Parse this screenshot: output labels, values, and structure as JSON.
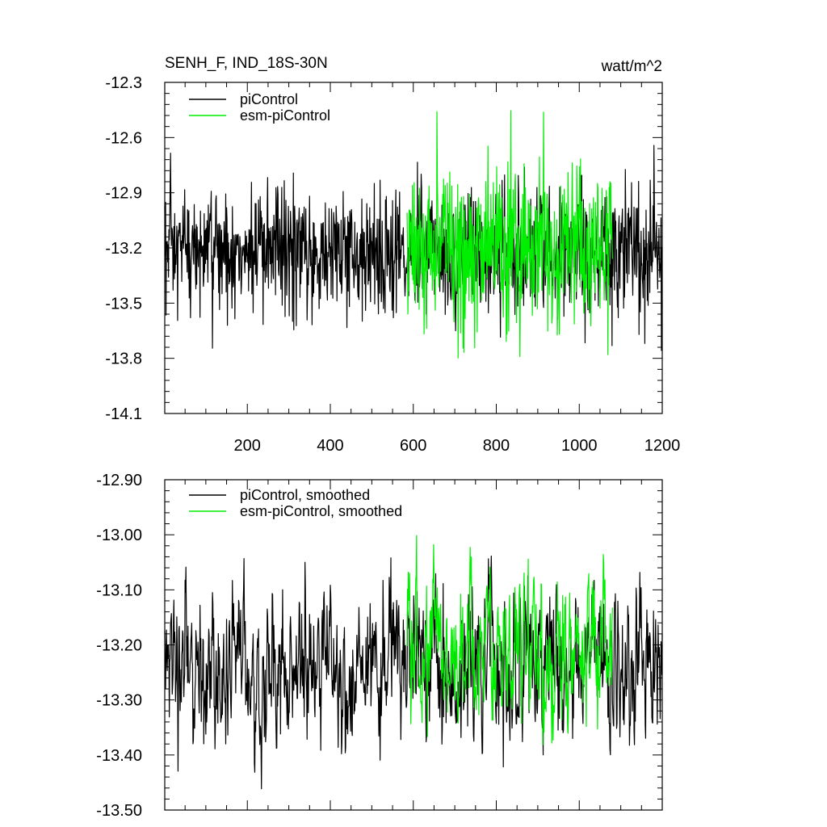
{
  "chart_data": [
    {
      "type": "line",
      "title": "SENH_F, IND_18S-30N",
      "units": "watt/m^2",
      "xlim": [
        1,
        1200
      ],
      "ylim": [
        -14.1,
        -12.3
      ],
      "xticks": [
        200,
        400,
        600,
        800,
        1000,
        1200
      ],
      "xtick_labels": [
        "200",
        "400",
        "600",
        "800",
        "1000",
        "1200"
      ],
      "yticks": [
        -12.3,
        -12.6,
        -12.9,
        -13.2,
        -13.5,
        -13.8,
        -14.1
      ],
      "ytick_labels": [
        "-12.3",
        "-12.6",
        "-12.9",
        "-13.2",
        "-13.5",
        "-13.8",
        "-14.1"
      ],
      "legend_position": "top-left",
      "grid": false,
      "series": [
        {
          "name": "piControl",
          "color": "#000000",
          "x_range": [
            1,
            1200
          ],
          "mean": -13.22,
          "std": 0.17,
          "min": -13.96,
          "max": -12.37
        },
        {
          "name": "esm-piControl",
          "color": "#00ee00",
          "x_range": [
            585,
            1080
          ],
          "mean": -13.2,
          "std": 0.22,
          "min": -13.89,
          "max": -12.36
        }
      ]
    },
    {
      "type": "line",
      "title": "",
      "xlim": [
        1,
        1200
      ],
      "ylim": [
        -13.5,
        -12.9
      ],
      "xticks": [
        200,
        400,
        600,
        800,
        1000,
        1200
      ],
      "yticks": [
        -12.9,
        -13.0,
        -13.1,
        -13.2,
        -13.3,
        -13.4,
        -13.5
      ],
      "ytick_labels": [
        "-12.90",
        "-13.00",
        "-13.10",
        "-13.20",
        "-13.30",
        "-13.40",
        "-13.50"
      ],
      "legend_position": "top-left",
      "grid": false,
      "series": [
        {
          "name": "piControl, smoothed",
          "color": "#000000",
          "x_range": [
            1,
            1200
          ],
          "mean": -13.24,
          "std": 0.07,
          "min": -13.49,
          "max": -12.99
        },
        {
          "name": "esm-piControl, smoothed",
          "color": "#00ee00",
          "x_range": [
            585,
            1080
          ],
          "mean": -13.21,
          "std": 0.07,
          "min": -13.41,
          "max": -12.97
        }
      ]
    }
  ]
}
